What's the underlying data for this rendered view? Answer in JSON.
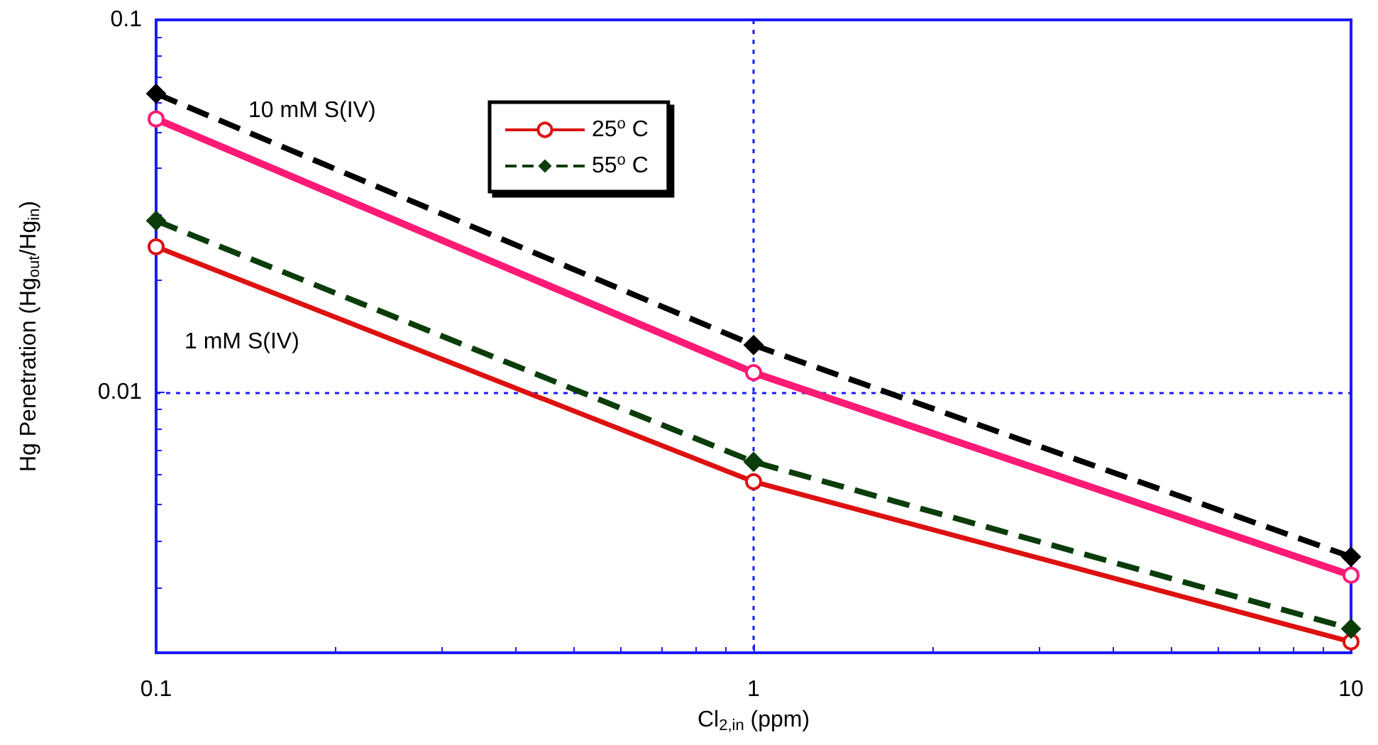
{
  "chart_data": {
    "type": "line",
    "xlabel": "Cl$_{2,in}$ (ppm)",
    "ylabel": "Hg Penetration (Hg$_{out}$/Hg$_{in}$)",
    "x": [
      0.1,
      1,
      10
    ],
    "series": [
      {
        "color": "#000000",
        "marker": "diamond",
        "line_style": "dashed",
        "values": [
          0.0634,
          0.0134,
          0.00362
        ]
      },
      {
        "color": "#ff1a75",
        "marker": "circle",
        "line_style": "solid",
        "values": [
          0.0542,
          0.0113,
          0.00323
        ]
      },
      {
        "name": "55$^{o}$ C",
        "color": "#0b3d0b",
        "marker": "diamond",
        "line_style": "dashed",
        "values": [
          0.0289,
          0.00651,
          0.00232
        ]
      },
      {
        "name": "25$^{o}$ C",
        "color": "#dd1111",
        "marker": "circle",
        "line_style": "solid",
        "values": [
          0.0246,
          0.00576,
          0.00214
        ]
      }
    ],
    "annotations": [
      "10 mM S(IV)",
      "1 mM S(IV)"
    ],
    "log": "xy",
    "xlim": [
      0.1,
      10
    ],
    "xticks": [
      0.1,
      1,
      10
    ],
    "ylim": [
      0.002,
      0.1
    ],
    "yticks": [
      0.01,
      0.1
    ],
    "grid": true,
    "legend": "top"
  }
}
